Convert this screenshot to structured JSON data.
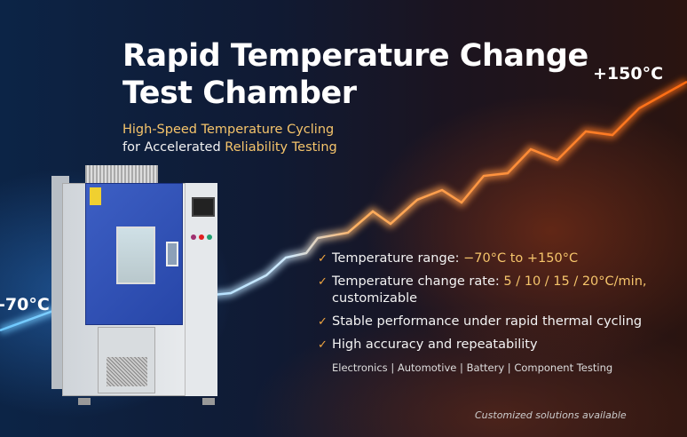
{
  "headline": {
    "line1": "Rapid Temperature Change",
    "line2": "Test Chamber"
  },
  "subtitle": {
    "line1": "High-Speed Temperature Cycling",
    "line2_prefix": "for Accelerated ",
    "line2_highlight": "Reliability Testing"
  },
  "temperature_labels": {
    "low": "-70°C",
    "high": "+150°C"
  },
  "features": [
    {
      "text": "Temperature range: ",
      "highlight": "−70°C to +150°C"
    },
    {
      "text": "Temperature change rate: ",
      "highlight": "5 / 10 / 15 / 20°C/min,",
      "extra": "customizable"
    },
    {
      "text": "Stable performance under rapid thermal cycling",
      "highlight": ""
    },
    {
      "text": "High accuracy and repeatability",
      "highlight": ""
    }
  ],
  "check_icon": "checkmark-icon",
  "applications": "Electronics | Automotive | Battery | Component Testing",
  "footer_note": "Customized solutions available",
  "colors": {
    "accent_gold": "#f5c46b",
    "cold_blue": "#4fb4ff",
    "hot_orange": "#ff7a1a",
    "door_blue": "#2f4fb5"
  }
}
